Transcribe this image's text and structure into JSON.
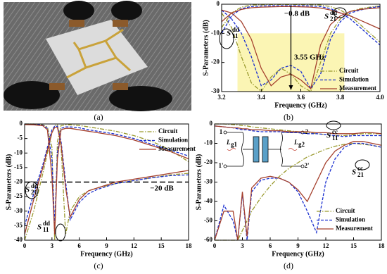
{
  "figure": {
    "captions": [
      "(a)",
      "(b)",
      "(c)",
      "(d)"
    ]
  },
  "chart_data": [
    {
      "type": "line",
      "xlabel": "Frequency (GHz)",
      "ylabel": "S-Parameters (dB)",
      "x": [
        3.2,
        3.25,
        3.3,
        3.35,
        3.4,
        3.45,
        3.5,
        3.55,
        3.6,
        3.65,
        3.7,
        3.75,
        3.8,
        3.85,
        3.9,
        3.95,
        4.0
      ],
      "xlim": [
        3.2,
        4.0
      ],
      "xticks": [
        3.2,
        3.4,
        3.6,
        3.8,
        {
          "value": 4,
          "label": "4.0"
        }
      ],
      "ylim": [
        -30,
        0
      ],
      "yticks": [
        0,
        -10,
        -20,
        -30
      ],
      "legend": "lower right",
      "highlight": {
        "x": [
          3.28,
          3.82
        ],
        "y": [
          -30,
          -10
        ],
        "color": "#fbf5b4"
      },
      "arrow_x": 3.55,
      "series": [
        {
          "name": "Circuit",
          "color": "#9a9a2e",
          "curves": [
            [
              -8,
              -3,
              -1,
              -0.3,
              -0.2,
              -0.1,
              -0.1,
              -0.1,
              -0.1,
              -0.2,
              -0.3,
              -0.8,
              -2,
              -4,
              -7,
              -10,
              -13
            ],
            [
              -3,
              -8,
              -18,
              -27,
              -30,
              -25,
              -22,
              -24,
              -28,
              -30,
              -20,
              -10,
              -5,
              -2.5,
              -1.5,
              -1,
              -0.6
            ]
          ]
        },
        {
          "name": "Simulation",
          "color": "#1a2fd0",
          "curves": [
            [
              -10,
              -4,
              -1.5,
              -0.8,
              -0.6,
              -0.5,
              -0.5,
              -0.5,
              -0.5,
              -0.6,
              -0.8,
              -1.5,
              -3,
              -5,
              -8,
              -11,
              -14
            ],
            [
              -2,
              -5,
              -10,
              -18,
              -28,
              -26,
              -22,
              -21,
              -23,
              -29,
              -24,
              -12,
              -6,
              -3,
              -2,
              -1.2,
              -0.8
            ]
          ]
        },
        {
          "name": "Measurement",
          "color": "#a5402d",
          "curves": [
            [
              -6,
              -3,
              -1.8,
              -1.2,
              -1,
              -0.9,
              -0.8,
              -0.8,
              -0.9,
              -1,
              -1.3,
              -2,
              -3,
              -4,
              -5.5,
              -7,
              -8.5
            ],
            [
              -2,
              -3,
              -6,
              -12,
              -22,
              -28,
              -25,
              -24,
              -26,
              -29,
              -14,
              -7,
              -4,
              -2.5,
              -1.8,
              -1.5,
              -1.2
            ]
          ]
        }
      ],
      "annotations": [
        {
          "text": "−0.8 dB"
        },
        {
          "text": "3.55 GHz"
        },
        {
          "symbol": "S",
          "sup": "dd",
          "sub": "11"
        },
        {
          "symbol": "S",
          "sup": "dd",
          "sub": "21"
        }
      ]
    },
    {
      "type": "line",
      "xlabel": "Frequency (GHz)",
      "ylabel": "S-Parameters (dB)",
      "x": [
        0,
        1,
        2,
        2.5,
        3,
        3.3,
        3.6,
        4,
        4.5,
        5,
        6,
        7,
        8,
        10,
        12,
        14,
        16,
        18
      ],
      "xlim": [
        0,
        18
      ],
      "xticks": [
        0,
        3,
        6,
        9,
        12,
        15,
        18
      ],
      "ylim": [
        -40,
        0
      ],
      "yticks": [
        0,
        -5,
        -10,
        -15,
        -20,
        -25,
        -30,
        -35,
        -40
      ],
      "legend": "upper right",
      "ref_line": -20,
      "series": [
        {
          "name": "Circuit",
          "color": "#9a9a2e",
          "curves": [
            [
              0,
              0,
              -0.3,
              -1,
              -8,
              -40,
              -6,
              -0.5,
              -0.3,
              -0.3,
              -0.5,
              -1,
              -1.5,
              -2.5,
              -4,
              -6,
              -9,
              -13
            ],
            [
              -40,
              -30,
              -17,
              -10,
              -3,
              -0.5,
              -0.3,
              -8,
              -38,
              -30,
              -25,
              -23,
              -22,
              -20.5,
              -19.5,
              -18.5,
              -17.5,
              -17
            ]
          ]
        },
        {
          "name": "Simulation",
          "color": "#1a2fd0",
          "curves": [
            [
              0,
              -0.1,
              -0.4,
              -1.5,
              -12,
              -35,
              -10,
              -1.5,
              -1,
              -1,
              -1.3,
              -2,
              -2.5,
              -3.5,
              -5,
              -7,
              -9,
              -11
            ],
            [
              -35,
              -24,
              -14,
              -8,
              -2,
              -0.8,
              -0.8,
              -6,
              -20,
              -33,
              -27,
              -24,
              -22.5,
              -20.5,
              -19.5,
              -18.5,
              -17.8,
              -17.5
            ]
          ]
        },
        {
          "name": "Measurement",
          "color": "#a5402d",
          "curves": [
            [
              -0.2,
              -0.3,
              -0.6,
              -2,
              -18,
              -38,
              -12,
              -2,
              -1.5,
              -1.5,
              -2,
              -2.5,
              -3,
              -4,
              -5.5,
              -7.5,
              -9.5,
              -12
            ],
            [
              -38,
              -26,
              -15,
              -9,
              -3,
              -1.2,
              -1.2,
              -7,
              -22,
              -32,
              -26,
              -23,
              -22,
              -20,
              -19,
              -18,
              -17,
              -16
            ]
          ]
        }
      ],
      "annotations": [
        {
          "text": "−20 dB"
        },
        {
          "symbol": "S",
          "sup": "dd",
          "sub": "21"
        },
        {
          "symbol": "S",
          "sup": "dd",
          "sub": "11"
        }
      ]
    },
    {
      "type": "line",
      "xlabel": "Frequency (GHz)",
      "ylabel": "S-Parameters (dB)",
      "x": [
        0,
        1,
        2,
        2.5,
        3,
        3.5,
        4,
        5,
        6,
        7,
        8,
        9,
        10,
        11,
        12,
        13,
        14,
        15,
        16,
        17,
        18
      ],
      "xlim": [
        0,
        18
      ],
      "xticks": [
        0,
        3,
        6,
        9,
        12,
        15,
        18
      ],
      "ylim": [
        -60,
        0
      ],
      "yticks": [
        0,
        -10,
        -20,
        -30,
        -40,
        -50,
        -60
      ],
      "legend": "lower right",
      "series": [
        {
          "name": "Circuit",
          "color": "#9a9a2e",
          "curves": [
            [
              0,
              0,
              -0.3,
              -0.5,
              -0.8,
              -1,
              -1.5,
              -2,
              -2.5,
              -3,
              -3.5,
              -4,
              -4.5,
              -5,
              -5.5,
              -6,
              -6,
              -5.5,
              -5,
              -5,
              -5
            ],
            [
              -60,
              -60,
              -60,
              -60,
              -55,
              -50,
              -45,
              -38,
              -32,
              -27,
              -23,
              -20,
              -17,
              -15,
              -13,
              -11.5,
              -10.5,
              -10,
              -10.5,
              -11,
              -12
            ]
          ]
        },
        {
          "name": "Simulation",
          "color": "#1a2fd0",
          "curves": [
            [
              -1,
              -1.5,
              -2,
              -2.5,
              -3,
              -3,
              -3.5,
              -4,
              -4,
              -4,
              -4.5,
              -4.5,
              -5,
              -5,
              -5.5,
              -6,
              -6.5,
              -6,
              -6,
              -6,
              -6
            ],
            [
              -60,
              -42,
              -50,
              -60,
              -36,
              -60,
              -35,
              -29,
              -28,
              -28,
              -30,
              -35,
              -45,
              -56,
              -30,
              -18,
              -12,
              -10,
              -10,
              -11,
              -12
            ]
          ]
        },
        {
          "name": "Measurement",
          "color": "#a5402d",
          "curves": [
            [
              -1,
              -1.5,
              -2,
              -2,
              -2.5,
              -2.5,
              -3,
              -3,
              -3.5,
              -3.5,
              -4,
              -4,
              -4,
              -4.5,
              -4.5,
              -5,
              -5,
              -5,
              -4.5,
              -4.5,
              -5
            ],
            [
              -60,
              -45,
              -45,
              -60,
              -35,
              -58,
              -33,
              -28,
              -27,
              -28,
              -30,
              -34,
              -40,
              -30,
              -20,
              -14,
              -11,
              -9,
              -9,
              -10,
              -11
            ]
          ]
        }
      ],
      "annotations": [
        {
          "symbol": "S",
          "sup": "cc",
          "sub": "11"
        },
        {
          "symbol": "S",
          "sup": "cc",
          "sub": "21"
        }
      ],
      "inset": {
        "ports": [
          "1",
          "1'",
          "2",
          "2'"
        ],
        "inductors": [
          {
            "symbol": "L",
            "sub": "g1"
          },
          {
            "symbol": "L",
            "sub": "g2"
          }
        ]
      }
    }
  ]
}
